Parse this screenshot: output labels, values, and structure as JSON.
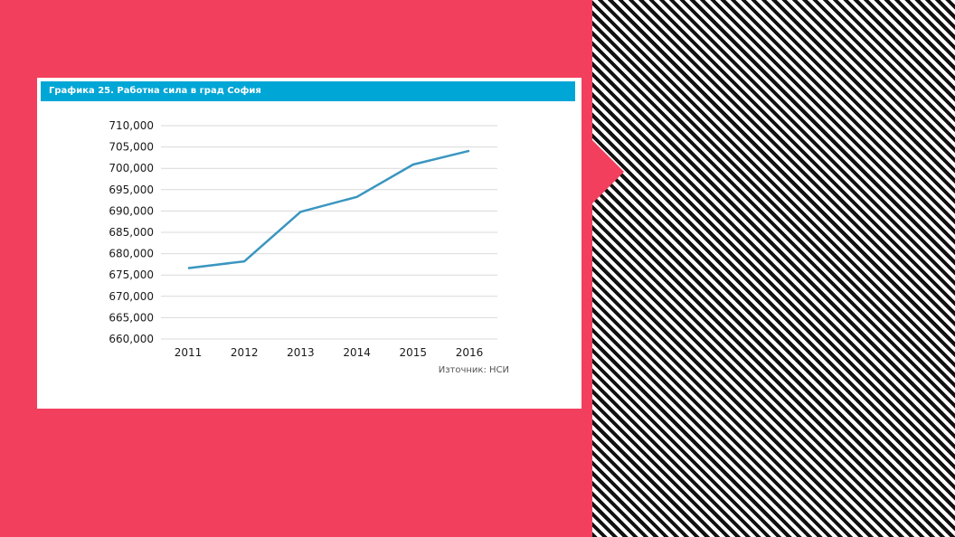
{
  "chart_data": {
    "type": "line",
    "title": "Графика 25. Работна сила в град София",
    "x": [
      "2011",
      "2012",
      "2013",
      "2014",
      "2015",
      "2016"
    ],
    "series": [
      {
        "values": [
          676600,
          678200,
          689800,
          693300,
          700900,
          704100
        ]
      }
    ],
    "ylim": [
      660000,
      710000
    ],
    "yticks": [
      "660,000",
      "665,000",
      "670,000",
      "675,000",
      "680,000",
      "685,000",
      "690,000",
      "695,000",
      "700,000",
      "705,000",
      "710,000"
    ],
    "grid": true,
    "source": "Източник: НСИ",
    "colors": {
      "line": "#3a96c0",
      "header": "#00a6d6",
      "grid": "#d9d9d9"
    }
  }
}
